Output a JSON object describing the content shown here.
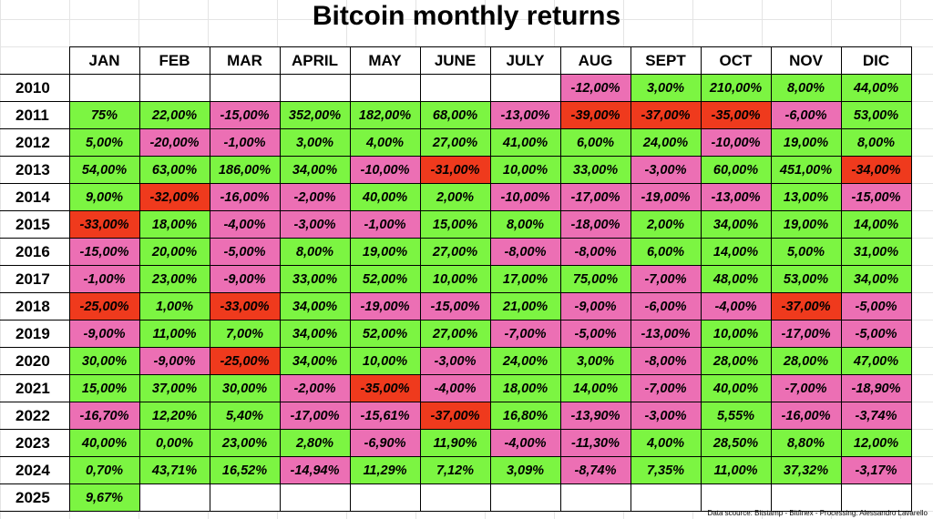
{
  "chart_data": {
    "type": "table",
    "title": "Bitcoin monthly returns",
    "columns": [
      "JAN",
      "FEB",
      "MAR",
      "APRIL",
      "MAY",
      "JUNE",
      "JULY",
      "AUG",
      "SEPT",
      "OCT",
      "NOV",
      "DIC"
    ],
    "rows": [
      {
        "year": "2010",
        "values": [
          "",
          "",
          "",
          "",
          "",
          "",
          "",
          "-12,00%",
          "3,00%",
          "210,00%",
          "8,00%",
          "44,00%"
        ]
      },
      {
        "year": "2011",
        "values": [
          "75%",
          "22,00%",
          "-15,00%",
          "352,00%",
          "182,00%",
          "68,00%",
          "-13,00%",
          "-39,00%",
          "-37,00%",
          "-35,00%",
          "-6,00%",
          "53,00%"
        ]
      },
      {
        "year": "2012",
        "values": [
          "5,00%",
          "-20,00%",
          "-1,00%",
          "3,00%",
          "4,00%",
          "27,00%",
          "41,00%",
          "6,00%",
          "24,00%",
          "-10,00%",
          "19,00%",
          "8,00%"
        ]
      },
      {
        "year": "2013",
        "values": [
          "54,00%",
          "63,00%",
          "186,00%",
          "34,00%",
          "-10,00%",
          "-31,00%",
          "10,00%",
          "33,00%",
          "-3,00%",
          "60,00%",
          "451,00%",
          "-34,00%"
        ]
      },
      {
        "year": "2014",
        "values": [
          "9,00%",
          "-32,00%",
          "-16,00%",
          "-2,00%",
          "40,00%",
          "2,00%",
          "-10,00%",
          "-17,00%",
          "-19,00%",
          "-13,00%",
          "13,00%",
          "-15,00%"
        ]
      },
      {
        "year": "2015",
        "values": [
          "-33,00%",
          "18,00%",
          "-4,00%",
          "-3,00%",
          "-1,00%",
          "15,00%",
          "8,00%",
          "-18,00%",
          "2,00%",
          "34,00%",
          "19,00%",
          "14,00%"
        ]
      },
      {
        "year": "2016",
        "values": [
          "-15,00%",
          "20,00%",
          "-5,00%",
          "8,00%",
          "19,00%",
          "27,00%",
          "-8,00%",
          "-8,00%",
          "6,00%",
          "14,00%",
          "5,00%",
          "31,00%"
        ]
      },
      {
        "year": "2017",
        "values": [
          "-1,00%",
          "23,00%",
          "-9,00%",
          "33,00%",
          "52,00%",
          "10,00%",
          "17,00%",
          "75,00%",
          "-7,00%",
          "48,00%",
          "53,00%",
          "34,00%"
        ]
      },
      {
        "year": "2018",
        "values": [
          "-25,00%",
          "1,00%",
          "-33,00%",
          "34,00%",
          "-19,00%",
          "-15,00%",
          "21,00%",
          "-9,00%",
          "-6,00%",
          "-4,00%",
          "-37,00%",
          "-5,00%"
        ]
      },
      {
        "year": "2019",
        "values": [
          "-9,00%",
          "11,00%",
          "7,00%",
          "34,00%",
          "52,00%",
          "27,00%",
          "-7,00%",
          "-5,00%",
          "-13,00%",
          "10,00%",
          "-17,00%",
          "-5,00%"
        ]
      },
      {
        "year": "2020",
        "values": [
          "30,00%",
          "-9,00%",
          "-25,00%",
          "34,00%",
          "10,00%",
          "-3,00%",
          "24,00%",
          "3,00%",
          "-8,00%",
          "28,00%",
          "28,00%",
          "47,00%"
        ]
      },
      {
        "year": "2021",
        "values": [
          "15,00%",
          "37,00%",
          "30,00%",
          "-2,00%",
          "-35,00%",
          "-4,00%",
          "18,00%",
          "14,00%",
          "-7,00%",
          "40,00%",
          "-7,00%",
          "-18,90%"
        ]
      },
      {
        "year": "2022",
        "values": [
          "-16,70%",
          "12,20%",
          "5,40%",
          "-17,00%",
          "-15,61%",
          "-37,00%",
          "16,80%",
          "-13,90%",
          "-3,00%",
          "5,55%",
          "-16,00%",
          "-3,74%"
        ]
      },
      {
        "year": "2023",
        "values": [
          "40,00%",
          "0,00%",
          "23,00%",
          "2,80%",
          "-6,90%",
          "11,90%",
          "-4,00%",
          "-11,30%",
          "4,00%",
          "28,50%",
          "8,80%",
          "12,00%"
        ]
      },
      {
        "year": "2024",
        "values": [
          "0,70%",
          "43,71%",
          "16,52%",
          "-14,94%",
          "11,29%",
          "7,12%",
          "3,09%",
          "-8,74%",
          "7,35%",
          "11,00%",
          "37,32%",
          "-3,17%"
        ]
      },
      {
        "year": "2025",
        "values": [
          "9,67%",
          "",
          "",
          "",
          "",
          "",
          "",
          "",
          "",
          "",
          "",
          ""
        ]
      }
    ],
    "colors": {
      "positive": "#7cf542",
      "negative": "#ec6fb4",
      "large_negative": "#ef3a1d",
      "empty": "#ffffff"
    },
    "large_negative_threshold": -25
  },
  "footer": {
    "source": "Data scource: Bitstamp - Bitfinex - Processing: Alessandro Lavarello"
  }
}
